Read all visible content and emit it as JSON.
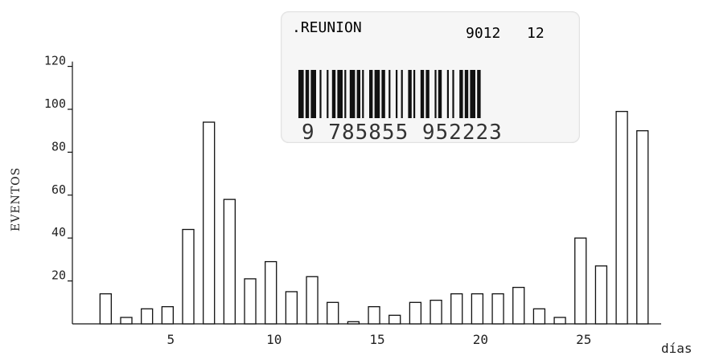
{
  "chart_data": {
    "type": "bar",
    "title": "",
    "xlabel": "días",
    "ylabel": "EVENTOS",
    "x": [
      2,
      3,
      4,
      5,
      6,
      7,
      8,
      9,
      10,
      11,
      12,
      13,
      14,
      15,
      16,
      17,
      18,
      19,
      20,
      21,
      22,
      23,
      24,
      25,
      26,
      27,
      28
    ],
    "values": [
      14,
      3,
      7,
      8,
      44,
      94,
      58,
      21,
      29,
      15,
      22,
      10,
      1,
      8,
      4,
      10,
      11,
      14,
      14,
      14,
      17,
      7,
      3,
      40,
      27,
      99,
      90
    ],
    "xlim": [
      0,
      30
    ],
    "ylim": [
      0,
      120
    ],
    "yticks": [
      20,
      40,
      60,
      80,
      100,
      120
    ],
    "ytick_labels": [
      "20",
      "40",
      "60",
      "80",
      "100",
      "120"
    ],
    "xticks": [
      5,
      10,
      15,
      20,
      25
    ],
    "xtick_labels": [
      "5",
      "10",
      "15",
      "20",
      "25"
    ],
    "grid": false,
    "legend": "none"
  },
  "sticker": {
    "title": ".REUNION",
    "code1": "9012",
    "code2": "12",
    "isbn_digits": "9 785855 952223"
  }
}
